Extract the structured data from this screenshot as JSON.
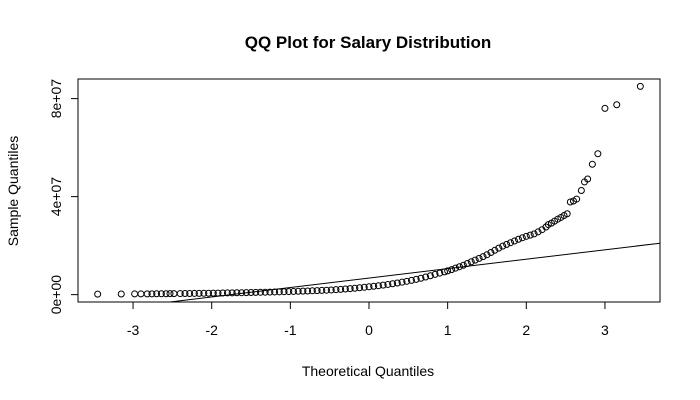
{
  "chart_data": {
    "type": "scatter",
    "title": "QQ Plot for Salary Distribution",
    "xlabel": "Theoretical Quantiles",
    "ylabel": "Sample Quantiles",
    "xlim": [
      -3.7,
      3.7
    ],
    "ylim": [
      -3000000,
      88000000
    ],
    "x_ticks": [
      {
        "value": -3,
        "label": "-3"
      },
      {
        "value": -2,
        "label": "-2"
      },
      {
        "value": -1,
        "label": "-1"
      },
      {
        "value": 0,
        "label": "0"
      },
      {
        "value": 1,
        "label": "1"
      },
      {
        "value": 2,
        "label": "2"
      },
      {
        "value": 3,
        "label": "3"
      }
    ],
    "y_ticks": [
      {
        "value": 0,
        "label": "0e+00"
      },
      {
        "value": 40000000,
        "label": "4e+07"
      },
      {
        "value": 80000000,
        "label": "8e+07"
      }
    ],
    "reference_line": {
      "x": [
        -3.7,
        3.7
      ],
      "y": [
        -7500000,
        21000000
      ]
    },
    "grid": false,
    "legend": "none",
    "point_color": "#000000",
    "points": [
      [
        -3.45,
        200000
      ],
      [
        -3.15,
        250000
      ],
      [
        -2.98,
        300000
      ],
      [
        -2.9,
        300000
      ],
      [
        -2.82,
        320000
      ],
      [
        -2.76,
        330000
      ],
      [
        -2.7,
        350000
      ],
      [
        -2.64,
        370000
      ],
      [
        -2.58,
        380000
      ],
      [
        -2.53,
        400000
      ],
      [
        -2.48,
        420000
      ],
      [
        -2.4,
        440000
      ],
      [
        -2.34,
        460000
      ],
      [
        -2.28,
        480000
      ],
      [
        -2.22,
        500000
      ],
      [
        -2.16,
        520000
      ],
      [
        -2.1,
        550000
      ],
      [
        -2.04,
        580000
      ],
      [
        -1.98,
        610000
      ],
      [
        -1.92,
        640000
      ],
      [
        -1.86,
        670000
      ],
      [
        -1.8,
        700000
      ],
      [
        -1.74,
        730000
      ],
      [
        -1.68,
        760000
      ],
      [
        -1.62,
        800000
      ],
      [
        -1.56,
        840000
      ],
      [
        -1.5,
        880000
      ],
      [
        -1.44,
        920000
      ],
      [
        -1.38,
        960000
      ],
      [
        -1.32,
        1000000
      ],
      [
        -1.26,
        1050000
      ],
      [
        -1.2,
        1100000
      ],
      [
        -1.14,
        1150000
      ],
      [
        -1.08,
        1200000
      ],
      [
        -1.02,
        1250000
      ],
      [
        -0.96,
        1310000
      ],
      [
        -0.9,
        1370000
      ],
      [
        -0.84,
        1430000
      ],
      [
        -0.78,
        1500000
      ],
      [
        -0.72,
        1570000
      ],
      [
        -0.66,
        1650000
      ],
      [
        -0.6,
        1730000
      ],
      [
        -0.54,
        1820000
      ],
      [
        -0.48,
        1920000
      ],
      [
        -0.42,
        2030000
      ],
      [
        -0.36,
        2150000
      ],
      [
        -0.3,
        2300000
      ],
      [
        -0.24,
        2450000
      ],
      [
        -0.18,
        2620000
      ],
      [
        -0.12,
        2800000
      ],
      [
        -0.06,
        3000000
      ],
      [
        0.0,
        3200000
      ],
      [
        0.06,
        3420000
      ],
      [
        0.12,
        3650000
      ],
      [
        0.18,
        3900000
      ],
      [
        0.24,
        4160000
      ],
      [
        0.3,
        4450000
      ],
      [
        0.36,
        4760000
      ],
      [
        0.42,
        5090000
      ],
      [
        0.48,
        5440000
      ],
      [
        0.54,
        5820000
      ],
      [
        0.6,
        6240000
      ],
      [
        0.66,
        6700000
      ],
      [
        0.72,
        7200000
      ],
      [
        0.78,
        7720000
      ],
      [
        0.84,
        8260000
      ],
      [
        0.9,
        8800000
      ],
      [
        0.96,
        9300000
      ],
      [
        1.0,
        9700000
      ],
      [
        1.05,
        10200000
      ],
      [
        1.1,
        10800000
      ],
      [
        1.15,
        11400000
      ],
      [
        1.2,
        12000000
      ],
      [
        1.25,
        12700000
      ],
      [
        1.3,
        13400000
      ],
      [
        1.35,
        14100000
      ],
      [
        1.4,
        14800000
      ],
      [
        1.45,
        15500000
      ],
      [
        1.5,
        16300000
      ],
      [
        1.55,
        17200000
      ],
      [
        1.6,
        18100000
      ],
      [
        1.65,
        19000000
      ],
      [
        1.7,
        19800000
      ],
      [
        1.75,
        20500000
      ],
      [
        1.8,
        21200000
      ],
      [
        1.85,
        21900000
      ],
      [
        1.9,
        22600000
      ],
      [
        1.95,
        23200000
      ],
      [
        2.0,
        23800000
      ],
      [
        2.05,
        24300000
      ],
      [
        2.1,
        24800000
      ],
      [
        2.15,
        25600000
      ],
      [
        2.2,
        26500000
      ],
      [
        2.25,
        27600000
      ],
      [
        2.28,
        28600000
      ],
      [
        2.32,
        29200000
      ],
      [
        2.36,
        30000000
      ],
      [
        2.4,
        30800000
      ],
      [
        2.44,
        31500000
      ],
      [
        2.48,
        32300000
      ],
      [
        2.52,
        33000000
      ],
      [
        2.56,
        37800000
      ],
      [
        2.6,
        38200000
      ],
      [
        2.64,
        39000000
      ],
      [
        2.7,
        42500000
      ],
      [
        2.74,
        46000000
      ],
      [
        2.78,
        47200000
      ],
      [
        2.84,
        53200000
      ],
      [
        2.91,
        57500000
      ],
      [
        3.0,
        76000000
      ],
      [
        3.15,
        77500000
      ],
      [
        3.45,
        85000000
      ]
    ]
  }
}
